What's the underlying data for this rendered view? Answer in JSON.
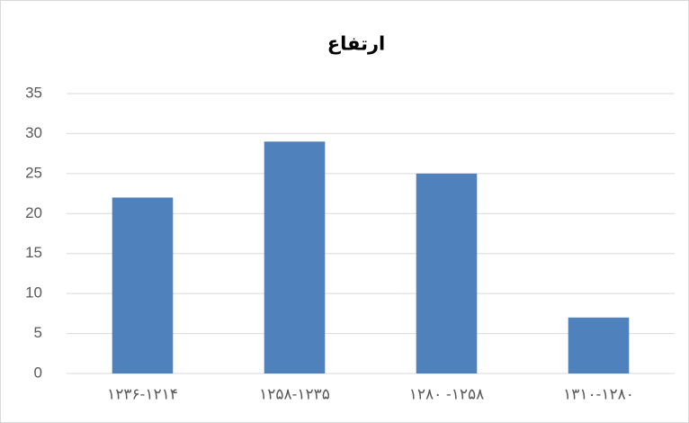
{
  "chart_data": {
    "type": "bar",
    "title": "ارتفاع",
    "categories": [
      "۱۲۳۶-۱۲۱۴",
      "۱۲۵۸-۱۲۳۵",
      "۱۲۸۰ -۱۲۵۸",
      "۱۳۱۰-۱۲۸۰"
    ],
    "values": [
      22,
      29,
      25,
      7
    ],
    "color": "#4f81bd",
    "ylim": [
      0,
      35
    ],
    "yticks": [
      0,
      5,
      10,
      15,
      20,
      25,
      30,
      35
    ],
    "grid": true
  }
}
